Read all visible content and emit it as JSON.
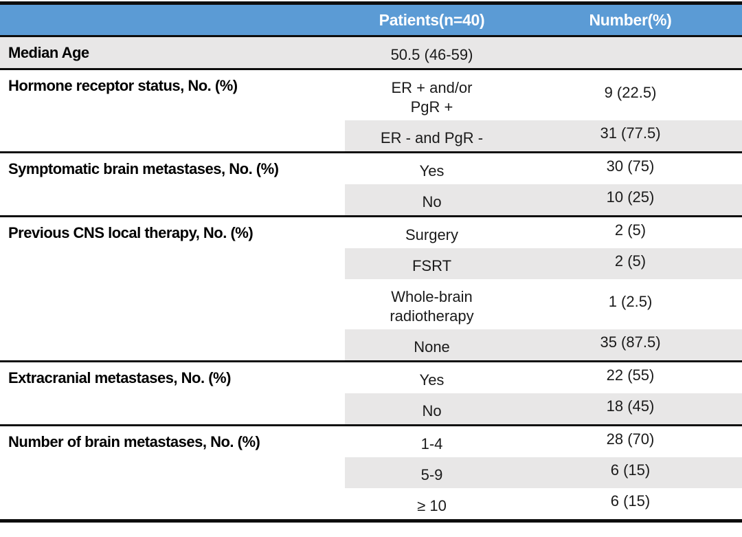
{
  "colors": {
    "header_bg": "#5B9BD5",
    "header_text": "#FFFFFF",
    "row_shade": "#E8E7E7",
    "border": "#0D0D0D"
  },
  "header": {
    "label": "",
    "patients": "Patients(n=40)",
    "number": "Number(%)"
  },
  "sections": [
    {
      "label": "Median Age",
      "rows": [
        {
          "value": "50.5 (46-59)",
          "number": ""
        }
      ]
    },
    {
      "label": "Hormone receptor status, No. (%)",
      "rows": [
        {
          "value": "ER + and/or\nPgR +",
          "number": "9 (22.5)"
        },
        {
          "value": "ER - and PgR -",
          "number": "31 (77.5)"
        }
      ]
    },
    {
      "label": "Symptomatic brain metastases, No. (%)",
      "rows": [
        {
          "value": "Yes",
          "number": "30 (75)"
        },
        {
          "value": "No",
          "number": "10 (25)"
        }
      ]
    },
    {
      "label": "Previous CNS local therapy, No. (%)",
      "rows": [
        {
          "value": "Surgery",
          "number": "2 (5)"
        },
        {
          "value": "FSRT",
          "number": "2 (5)"
        },
        {
          "value": "Whole-brain\nradiotherapy",
          "number": "1 (2.5)"
        },
        {
          "value": "None",
          "number": "35 (87.5)"
        }
      ]
    },
    {
      "label": "Extracranial metastases, No. (%)",
      "rows": [
        {
          "value": "Yes",
          "number": "22 (55)"
        },
        {
          "value": "No",
          "number": "18 (45)"
        }
      ]
    },
    {
      "label": "Number of brain metastases, No. (%)",
      "rows": [
        {
          "value": "1-4",
          "number": "28 (70)"
        },
        {
          "value": "5-9",
          "number": "6 (15)"
        },
        {
          "value": "≥ 10",
          "number": "6 (15)"
        }
      ]
    }
  ]
}
